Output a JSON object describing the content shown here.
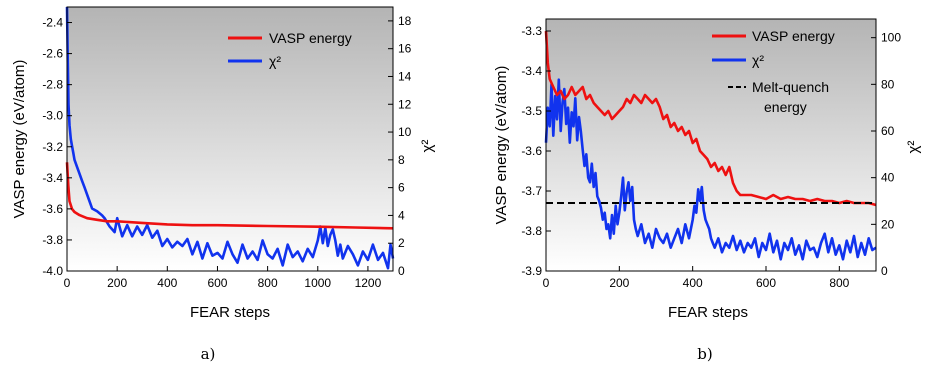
{
  "chart_data": [
    {
      "type": "line",
      "panel_label": "a)",
      "xlabel": "FEAR steps",
      "ylabel": "VASP energy (eV/atom)",
      "y2label": "χ²",
      "xlim": [
        0,
        1300
      ],
      "ylim": [
        -4.0,
        -2.3
      ],
      "y2lim": [
        0,
        19
      ],
      "xticks": [
        0,
        200,
        400,
        600,
        800,
        1000,
        1200
      ],
      "yticks": [
        -4.0,
        -3.8,
        -3.6,
        -3.4,
        -3.2,
        -3.0,
        -2.8,
        -2.6,
        -2.4
      ],
      "y2ticks": [
        0,
        2,
        4,
        6,
        8,
        10,
        12,
        14,
        16,
        18
      ],
      "background": "vertical gradient, gray at top to white at bottom",
      "legend_position": "top-right",
      "series": [
        {
          "name": "VASP energy",
          "axis": "left",
          "color": "#ee1111",
          "x": [
            0,
            5,
            10,
            20,
            30,
            50,
            80,
            120,
            160,
            200,
            300,
            400,
            500,
            600,
            800,
            1000,
            1150,
            1300
          ],
          "y": [
            -3.3,
            -3.45,
            -3.55,
            -3.6,
            -3.62,
            -3.64,
            -3.66,
            -3.67,
            -3.68,
            -3.68,
            -3.69,
            -3.7,
            -3.705,
            -3.705,
            -3.71,
            -3.715,
            -3.72,
            -3.725
          ]
        },
        {
          "name": "χ²",
          "axis": "right",
          "color": "#1133ee",
          "x": [
            0,
            3,
            6,
            10,
            15,
            20,
            25,
            30,
            40,
            50,
            60,
            70,
            80,
            90,
            100,
            120,
            140,
            150,
            160,
            170,
            180,
            190,
            200,
            220,
            240,
            260,
            280,
            300,
            320,
            340,
            360,
            380,
            400,
            420,
            440,
            460,
            480,
            500,
            520,
            540,
            560,
            580,
            600,
            620,
            640,
            660,
            680,
            700,
            720,
            740,
            760,
            780,
            800,
            820,
            840,
            860,
            880,
            900,
            920,
            940,
            960,
            980,
            1000,
            1010,
            1020,
            1030,
            1040,
            1050,
            1060,
            1070,
            1080,
            1090,
            1100,
            1120,
            1140,
            1160,
            1180,
            1200,
            1220,
            1240,
            1260,
            1280,
            1290,
            1300
          ],
          "y": [
            19,
            15,
            12,
            10.5,
            9.5,
            9,
            8.5,
            8,
            7.5,
            7,
            6.5,
            6,
            5.5,
            5,
            4.5,
            4.3,
            4,
            3.8,
            3.5,
            3.2,
            3,
            2.8,
            3.8,
            2.5,
            3.3,
            2.5,
            3.2,
            2.6,
            3.3,
            2.4,
            2.9,
            1.8,
            2.3,
            1.7,
            2.1,
            1.8,
            2.3,
            1.2,
            2.1,
            0.9,
            2.0,
            1.1,
            1.3,
            0.9,
            2.1,
            1.2,
            0.6,
            1.9,
            0.9,
            1.4,
            0.8,
            2.2,
            1.2,
            0.9,
            1.6,
            0.4,
            1.9,
            1.0,
            1.4,
            0.7,
            1.6,
            1.0,
            2.2,
            3.2,
            2.0,
            3.1,
            1.8,
            2.6,
            3.0,
            2.2,
            1.1,
            1.9,
            0.9,
            1.8,
            1.2,
            0.4,
            1.4,
            0.8,
            1.9,
            0.8,
            1.3,
            0.2,
            1.9,
            0.9
          ]
        }
      ]
    },
    {
      "type": "line",
      "panel_label": "b)",
      "xlabel": "FEAR steps",
      "ylabel": "VASP energy (eV/atom)",
      "y2label": "χ²",
      "xlim": [
        0,
        900
      ],
      "ylim": [
        -3.9,
        -3.27
      ],
      "y2lim": [
        0,
        108
      ],
      "xticks": [
        0,
        200,
        400,
        600,
        800
      ],
      "yticks": [
        -3.9,
        -3.8,
        -3.7,
        -3.6,
        -3.5,
        -3.4,
        -3.3
      ],
      "y2ticks": [
        0,
        20,
        40,
        60,
        80,
        100
      ],
      "background": "vertical gradient, gray at top to white at bottom",
      "legend_position": "top-right",
      "series": [
        {
          "name": "VASP energy",
          "axis": "left",
          "color": "#ee1111",
          "x": [
            0,
            5,
            10,
            20,
            30,
            40,
            50,
            60,
            70,
            80,
            90,
            100,
            110,
            120,
            130,
            140,
            150,
            160,
            170,
            180,
            190,
            200,
            210,
            220,
            230,
            240,
            250,
            260,
            270,
            280,
            290,
            300,
            310,
            320,
            330,
            340,
            350,
            360,
            370,
            380,
            390,
            400,
            410,
            420,
            430,
            440,
            450,
            460,
            470,
            480,
            490,
            500,
            510,
            520,
            530,
            540,
            560,
            580,
            600,
            620,
            640,
            660,
            680,
            700,
            720,
            740,
            760,
            780,
            800,
            820,
            840,
            860,
            880,
            900
          ],
          "y": [
            -3.3,
            -3.38,
            -3.42,
            -3.44,
            -3.46,
            -3.45,
            -3.47,
            -3.46,
            -3.44,
            -3.46,
            -3.45,
            -3.44,
            -3.47,
            -3.46,
            -3.48,
            -3.49,
            -3.5,
            -3.51,
            -3.5,
            -3.52,
            -3.51,
            -3.5,
            -3.49,
            -3.47,
            -3.48,
            -3.46,
            -3.47,
            -3.48,
            -3.46,
            -3.47,
            -3.48,
            -3.47,
            -3.49,
            -3.52,
            -3.51,
            -3.54,
            -3.53,
            -3.55,
            -3.54,
            -3.56,
            -3.55,
            -3.58,
            -3.57,
            -3.6,
            -3.61,
            -3.62,
            -3.64,
            -3.63,
            -3.65,
            -3.64,
            -3.66,
            -3.64,
            -3.68,
            -3.7,
            -3.71,
            -3.71,
            -3.71,
            -3.715,
            -3.72,
            -3.71,
            -3.72,
            -3.715,
            -3.72,
            -3.72,
            -3.725,
            -3.72,
            -3.725,
            -3.725,
            -3.73,
            -3.725,
            -3.73,
            -3.73,
            -3.73,
            -3.735
          ]
        },
        {
          "name": "χ²",
          "axis": "right",
          "color": "#1133ee",
          "x": [
            0,
            5,
            10,
            15,
            20,
            25,
            30,
            35,
            40,
            45,
            50,
            55,
            60,
            65,
            70,
            75,
            80,
            85,
            90,
            95,
            100,
            105,
            110,
            115,
            120,
            125,
            130,
            135,
            140,
            145,
            150,
            155,
            160,
            165,
            170,
            175,
            180,
            185,
            190,
            195,
            200,
            205,
            210,
            215,
            220,
            225,
            230,
            235,
            240,
            245,
            250,
            260,
            270,
            280,
            290,
            300,
            310,
            320,
            330,
            340,
            350,
            360,
            370,
            380,
            390,
            400,
            405,
            410,
            415,
            420,
            425,
            430,
            435,
            440,
            445,
            450,
            455,
            460,
            470,
            480,
            490,
            500,
            510,
            520,
            530,
            540,
            550,
            560,
            570,
            580,
            590,
            600,
            610,
            620,
            630,
            640,
            650,
            660,
            670,
            680,
            690,
            700,
            710,
            720,
            730,
            740,
            750,
            760,
            770,
            780,
            790,
            800,
            810,
            820,
            830,
            840,
            850,
            860,
            870,
            880,
            890,
            900
          ],
          "y": [
            55,
            70,
            62,
            80,
            58,
            75,
            65,
            82,
            60,
            72,
            78,
            63,
            70,
            55,
            68,
            62,
            74,
            56,
            66,
            60,
            52,
            45,
            50,
            40,
            38,
            46,
            36,
            42,
            32,
            30,
            27,
            22,
            25,
            18,
            20,
            14,
            24,
            16,
            28,
            20,
            25,
            32,
            40,
            26,
            34,
            38,
            30,
            36,
            22,
            18,
            15,
            20,
            12,
            16,
            10,
            18,
            14,
            12,
            16,
            10,
            14,
            18,
            12,
            20,
            14,
            22,
            28,
            25,
            35,
            30,
            36,
            26,
            22,
            20,
            18,
            14,
            12,
            10,
            14,
            8,
            12,
            10,
            15,
            9,
            13,
            8,
            12,
            10,
            14,
            6,
            12,
            9,
            16,
            8,
            13,
            5,
            12,
            9,
            14,
            7,
            11,
            5,
            13,
            9,
            10,
            6,
            12,
            16,
            8,
            14,
            7,
            11,
            5,
            13,
            8,
            15,
            6,
            12,
            7,
            14,
            9,
            10
          ]
        },
        {
          "name": "Melt-quench energy",
          "axis": "left",
          "color": "#000000",
          "dashed": true,
          "x": [
            0,
            900
          ],
          "y": [
            -3.73,
            -3.73
          ]
        }
      ]
    }
  ],
  "legend_a": {
    "vasp": "VASP energy",
    "chi": "χ²"
  },
  "legend_b": {
    "vasp": "VASP energy",
    "chi": "χ²",
    "melt_line1": "Melt-quench",
    "melt_line2": "energy"
  }
}
